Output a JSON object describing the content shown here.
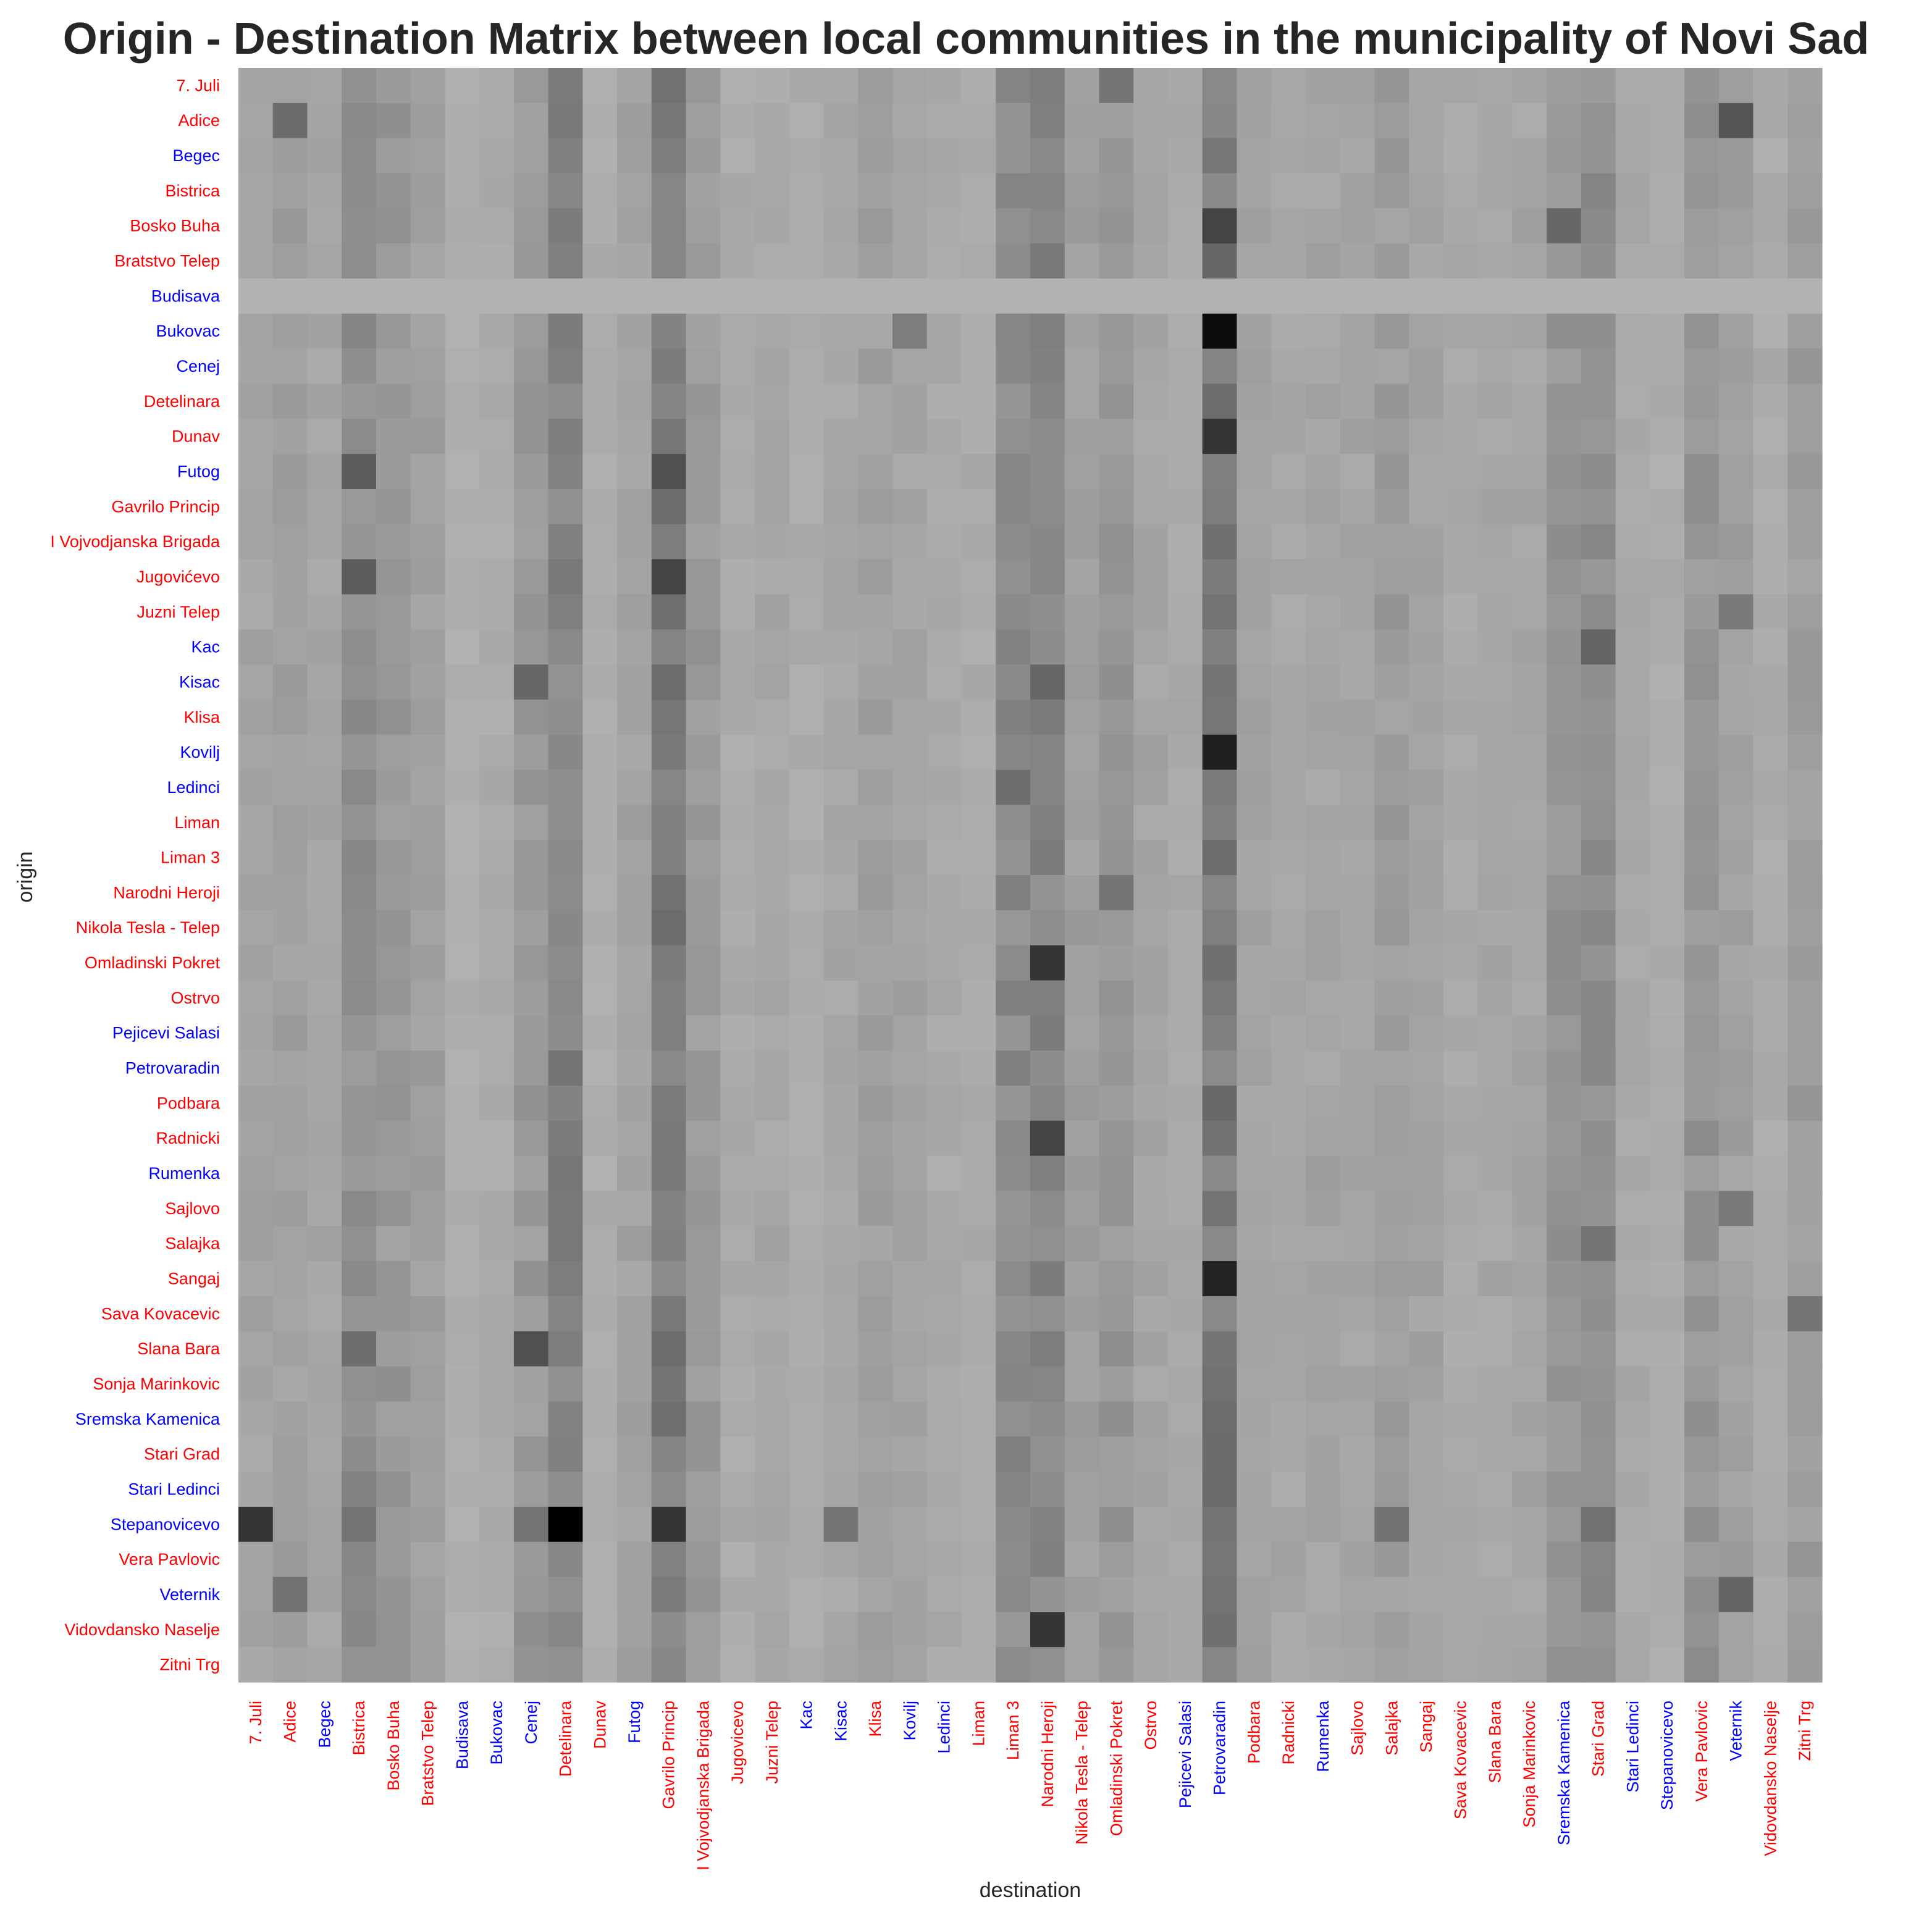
{
  "chart_data": {
    "type": "heatmap",
    "title": "Origin - Destination Matrix between local communities in the municipality of Novi Sad",
    "xlabel": "destination",
    "ylabel": "origin",
    "colormap": "greyscale (light grey = low flow, black = high flow)",
    "label_colors": {
      "red": "#ff0000",
      "blue": "#0000ff"
    },
    "communities": [
      {
        "name": "7. Juli",
        "color": "red"
      },
      {
        "name": "Adice",
        "color": "red"
      },
      {
        "name": "Begec",
        "color": "blue"
      },
      {
        "name": "Bistrica",
        "color": "red"
      },
      {
        "name": "Bosko Buha",
        "color": "red"
      },
      {
        "name": "Bratstvo Telep",
        "color": "red"
      },
      {
        "name": "Budisava",
        "color": "blue"
      },
      {
        "name": "Bukovac",
        "color": "blue"
      },
      {
        "name": "Cenej",
        "color": "blue"
      },
      {
        "name": "Detelinara",
        "color": "red"
      },
      {
        "name": "Dunav",
        "color": "red"
      },
      {
        "name": "Futog",
        "color": "blue"
      },
      {
        "name": "Gavrilo Princip",
        "color": "red"
      },
      {
        "name": "I Vojvodjanska Brigada",
        "color": "red"
      },
      {
        "name": "Jugovicevo",
        "color": "red"
      },
      {
        "name": "Juzni Telep",
        "color": "red"
      },
      {
        "name": "Kac",
        "color": "blue"
      },
      {
        "name": "Kisac",
        "color": "blue"
      },
      {
        "name": "Klisa",
        "color": "red"
      },
      {
        "name": "Kovilj",
        "color": "blue"
      },
      {
        "name": "Ledinci",
        "color": "blue"
      },
      {
        "name": "Liman",
        "color": "red"
      },
      {
        "name": "Liman 3",
        "color": "red"
      },
      {
        "name": "Narodni Heroji",
        "color": "red"
      },
      {
        "name": "Nikola Tesla - Telep",
        "color": "red"
      },
      {
        "name": "Omladinski Pokret",
        "color": "red"
      },
      {
        "name": "Ostrvo",
        "color": "red"
      },
      {
        "name": "Pejicevi Salasi",
        "color": "blue"
      },
      {
        "name": "Petrovaradin",
        "color": "blue"
      },
      {
        "name": "Podbara",
        "color": "red"
      },
      {
        "name": "Radnicki",
        "color": "red"
      },
      {
        "name": "Rumenka",
        "color": "blue"
      },
      {
        "name": "Sajlovo",
        "color": "red"
      },
      {
        "name": "Salajka",
        "color": "red"
      },
      {
        "name": "Sangaj",
        "color": "red"
      },
      {
        "name": "Sava Kovacevic",
        "color": "red"
      },
      {
        "name": "Slana Bara",
        "color": "red"
      },
      {
        "name": "Sonja Marinkovic",
        "color": "red"
      },
      {
        "name": "Sremska Kamenica",
        "color": "blue"
      },
      {
        "name": "Stari Grad",
        "color": "red"
      },
      {
        "name": "Stari Ledinci",
        "color": "blue"
      },
      {
        "name": "Stepanovicevo",
        "color": "blue"
      },
      {
        "name": "Vera Pavlovic",
        "color": "red"
      },
      {
        "name": "Veternik",
        "color": "blue"
      },
      {
        "name": "Vidovdansko Naselje",
        "color": "red"
      },
      {
        "name": "Zitni Trg",
        "color": "red"
      }
    ],
    "row_label_overrides": {
      "14": "Jugovićevo"
    },
    "column_intensity_profile": [
      0.08,
      0.1,
      0.07,
      0.2,
      0.14,
      0.1,
      0.02,
      0.04,
      0.14,
      0.26,
      0.03,
      0.09,
      0.3,
      0.13,
      0.04,
      0.06,
      0.03,
      0.06,
      0.1,
      0.08,
      0.05,
      0.04,
      0.22,
      0.25,
      0.1,
      0.15,
      0.07,
      0.05,
      0.32,
      0.08,
      0.06,
      0.08,
      0.07,
      0.12,
      0.08,
      0.05,
      0.06,
      0.07,
      0.16,
      0.2,
      0.05,
      0.03,
      0.16,
      0.1,
      0.04,
      0.12
    ],
    "highlight_cells": [
      {
        "origin": "Stepanovicevo",
        "destination": "Detelinara",
        "value": 1.0
      },
      {
        "origin": "Bukovac",
        "destination": "Petrovaradin",
        "value": 0.93
      },
      {
        "origin": "Kovilj",
        "destination": "Petrovaradin",
        "value": 0.82
      },
      {
        "origin": "Sangaj",
        "destination": "Petrovaradin",
        "value": 0.8
      },
      {
        "origin": "Stepanovicevo",
        "destination": "7. Juli",
        "value": 0.7
      },
      {
        "origin": "Dunav",
        "destination": "Petrovaradin",
        "value": 0.7
      },
      {
        "origin": "Stepanovicevo",
        "destination": "Gavrilo Princip",
        "value": 0.7
      },
      {
        "origin": "Omladinski Pokret",
        "destination": "Narodni Heroji",
        "value": 0.7
      },
      {
        "origin": "Vidovdansko Naselje",
        "destination": "Narodni Heroji",
        "value": 0.7
      },
      {
        "origin": "Bosko Buha",
        "destination": "Petrovaradin",
        "value": 0.62
      },
      {
        "origin": "Jugovicevo",
        "destination": "Gavrilo Princip",
        "value": 0.62
      },
      {
        "origin": "Radnicki",
        "destination": "Narodni Heroji",
        "value": 0.62
      },
      {
        "origin": "Slana Bara",
        "destination": "Cenej",
        "value": 0.55
      },
      {
        "origin": "Futog",
        "destination": "Gavrilo Princip",
        "value": 0.55
      },
      {
        "origin": "Adice",
        "destination": "Veternik",
        "value": 0.52
      },
      {
        "origin": "Futog",
        "destination": "Bistrica",
        "value": 0.48
      },
      {
        "origin": "Jugovicevo",
        "destination": "Bistrica",
        "value": 0.48
      },
      {
        "origin": "Kac",
        "destination": "Stari Grad",
        "value": 0.44
      },
      {
        "origin": "Bosko Buha",
        "destination": "Sremska Kamenica",
        "value": 0.42
      },
      {
        "origin": "Adice",
        "destination": "Adice",
        "value": 0.4
      },
      {
        "origin": "Kisac",
        "destination": "Cenej",
        "value": 0.42
      },
      {
        "origin": "Kisac",
        "destination": "Narodni Heroji",
        "value": 0.42
      },
      {
        "origin": "Veternik",
        "destination": "Veternik",
        "value": 0.44
      },
      {
        "origin": "Veternik",
        "destination": "Adice",
        "value": 0.36
      },
      {
        "origin": "Slana Bara",
        "destination": "Bistrica",
        "value": 0.38
      },
      {
        "origin": "Sava Kovacevic",
        "destination": "Zitni Trg",
        "value": 0.34
      },
      {
        "origin": "7. Juli",
        "destination": "Omladinski Pokret",
        "value": 0.34
      },
      {
        "origin": "Ledinci",
        "destination": "Liman 3",
        "value": 0.38
      },
      {
        "origin": "Salajka",
        "destination": "Stari Grad",
        "value": 0.34
      },
      {
        "origin": "Sajlovo",
        "destination": "Veternik",
        "value": 0.32
      },
      {
        "origin": "Juzni Telep",
        "destination": "Veternik",
        "value": 0.32
      },
      {
        "origin": "Stepanovicevo",
        "destination": "Salajka",
        "value": 0.36
      },
      {
        "origin": "Stepanovicevo",
        "destination": "Kisac",
        "value": 0.34
      },
      {
        "origin": "Stepanovicevo",
        "destination": "Stari Grad",
        "value": 0.36
      },
      {
        "origin": "Stepanovicevo",
        "destination": "Bistrica",
        "value": 0.34
      },
      {
        "origin": "Stepanovicevo",
        "destination": "Cenej",
        "value": 0.34
      },
      {
        "origin": "Bukovac",
        "destination": "Kovilj",
        "value": 0.3
      },
      {
        "origin": "Narodni Heroji",
        "destination": "Omladinski Pokret",
        "value": 0.34
      },
      {
        "origin": "Radnicki",
        "destination": "Petrovaradin",
        "value": 0.36
      }
    ],
    "empty_rows": [
      "Budisava"
    ]
  }
}
